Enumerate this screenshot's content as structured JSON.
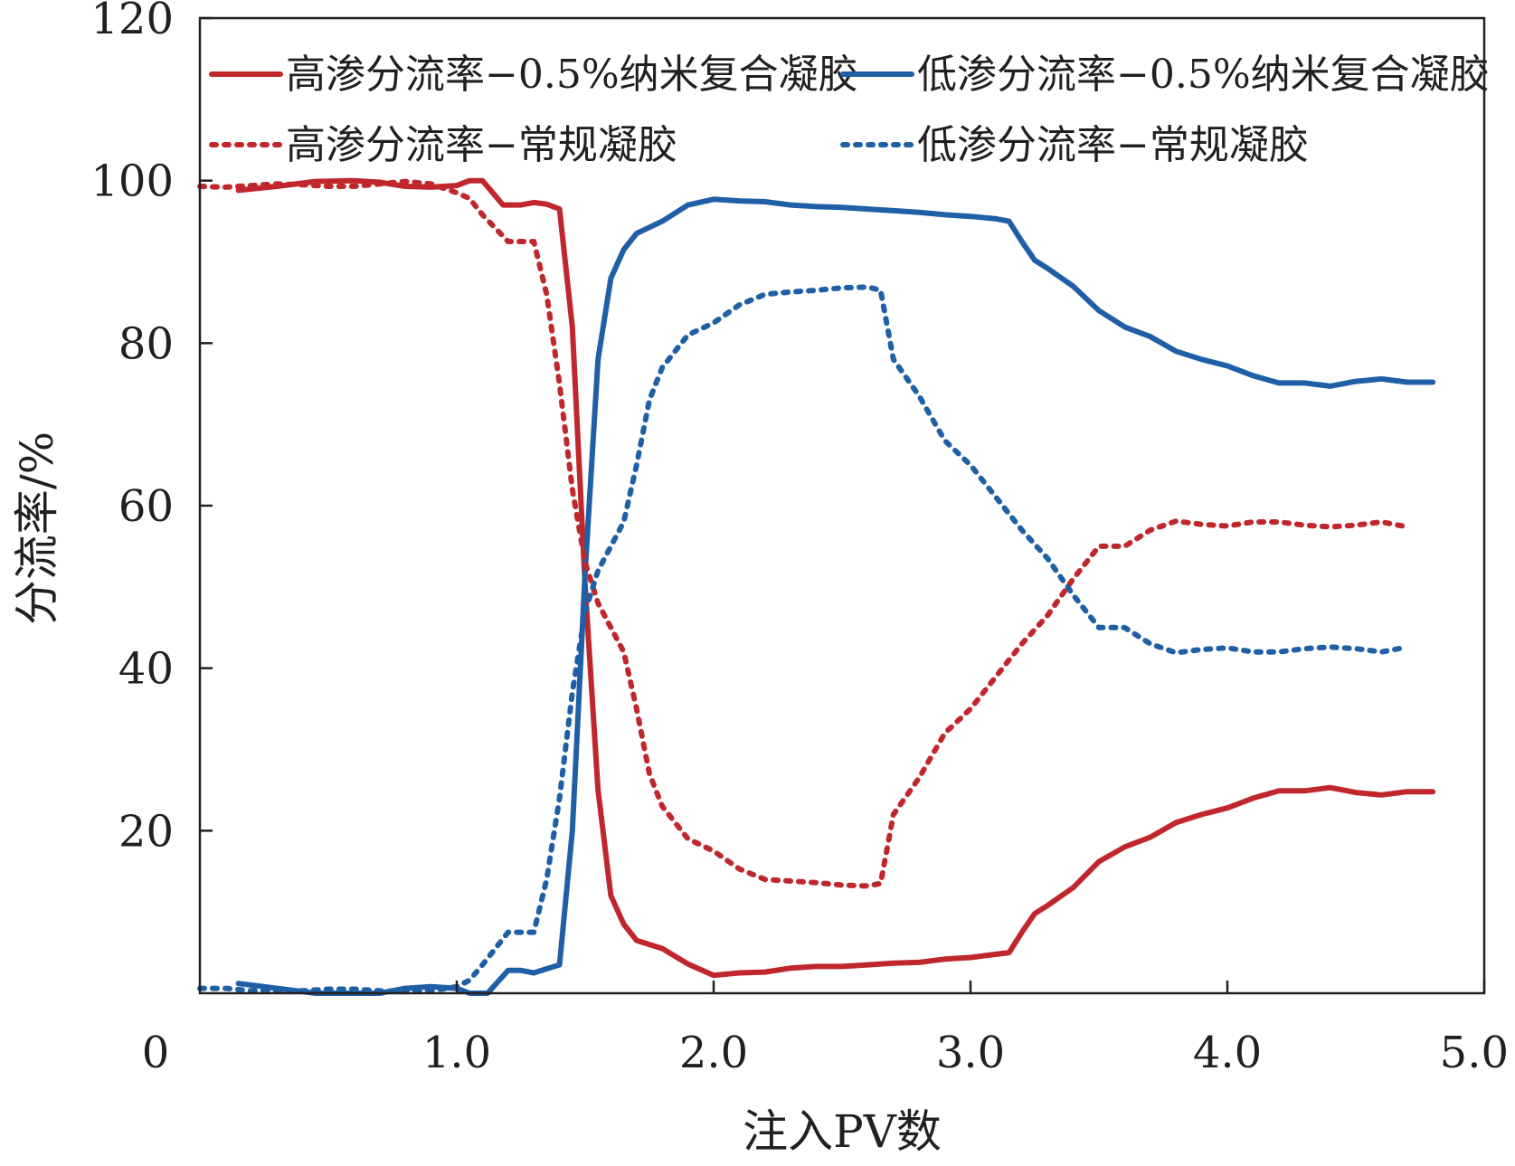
{
  "chart_data": {
    "type": "line",
    "title": "",
    "xlabel": "注入PV数",
    "ylabel": "分流率/%",
    "xlim": [
      0,
      5.0
    ],
    "ylim": [
      0,
      120
    ],
    "x_tick_labels": [
      "0",
      "1.0",
      "2.0",
      "3.0",
      "4.0",
      "5.0"
    ],
    "x_tick_values": [
      0,
      1,
      2,
      3,
      4,
      5
    ],
    "y_tick_labels": [
      "20",
      "40",
      "60",
      "80",
      "100",
      "120"
    ],
    "y_tick_values": [
      20,
      40,
      60,
      80,
      100,
      120
    ],
    "grid": false,
    "legend_position": "top",
    "colors": {
      "red": "#c0272d",
      "blue": "#1f5fa6",
      "axis": "#231f20"
    },
    "series": [
      {
        "name": "高渗分流率−0.5%纳米复合凝胶",
        "color": "#c0272d",
        "style": "solid",
        "points": [
          [
            0.15,
            98.8
          ],
          [
            0.3,
            99.3
          ],
          [
            0.45,
            99.9
          ],
          [
            0.6,
            100
          ],
          [
            0.7,
            99.8
          ],
          [
            0.8,
            99.3
          ],
          [
            0.9,
            99.2
          ],
          [
            1.0,
            99.4
          ],
          [
            1.05,
            100
          ],
          [
            1.1,
            100
          ],
          [
            1.18,
            97
          ],
          [
            1.25,
            97
          ],
          [
            1.3,
            97.3
          ],
          [
            1.35,
            97.1
          ],
          [
            1.4,
            96.5
          ],
          [
            1.45,
            82
          ],
          [
            1.5,
            50
          ],
          [
            1.55,
            25
          ],
          [
            1.6,
            12
          ],
          [
            1.65,
            8.5
          ],
          [
            1.7,
            6.5
          ],
          [
            1.8,
            5.5
          ],
          [
            1.9,
            3.6
          ],
          [
            2.0,
            2.2
          ],
          [
            2.1,
            2.5
          ],
          [
            2.2,
            2.6
          ],
          [
            2.3,
            3.1
          ],
          [
            2.4,
            3.3
          ],
          [
            2.5,
            3.3
          ],
          [
            2.6,
            3.5
          ],
          [
            2.7,
            3.7
          ],
          [
            2.8,
            3.8
          ],
          [
            2.9,
            4.2
          ],
          [
            3.0,
            4.4
          ],
          [
            3.1,
            4.8
          ],
          [
            3.15,
            5.0
          ],
          [
            3.2,
            7.5
          ],
          [
            3.25,
            9.8
          ],
          [
            3.3,
            10.8
          ],
          [
            3.4,
            13
          ],
          [
            3.5,
            16.2
          ],
          [
            3.6,
            18
          ],
          [
            3.7,
            19.2
          ],
          [
            3.8,
            21
          ],
          [
            3.9,
            22
          ],
          [
            4.0,
            22.8
          ],
          [
            4.1,
            24
          ],
          [
            4.2,
            24.9
          ],
          [
            4.3,
            24.9
          ],
          [
            4.4,
            25.3
          ],
          [
            4.5,
            24.7
          ],
          [
            4.6,
            24.4
          ],
          [
            4.7,
            24.8
          ],
          [
            4.8,
            24.8
          ]
        ]
      },
      {
        "name": "低渗分流率−0.5%纳米复合凝胶",
        "color": "#1f5fa6",
        "style": "solid",
        "points": [
          [
            0.15,
            1.2
          ],
          [
            0.3,
            0.6
          ],
          [
            0.45,
            0
          ],
          [
            0.6,
            0
          ],
          [
            0.7,
            0
          ],
          [
            0.8,
            0.6
          ],
          [
            0.9,
            0.8
          ],
          [
            1.0,
            0.6
          ],
          [
            1.05,
            0
          ],
          [
            1.12,
            0
          ],
          [
            1.2,
            2.8
          ],
          [
            1.25,
            2.8
          ],
          [
            1.3,
            2.5
          ],
          [
            1.35,
            3.0
          ],
          [
            1.4,
            3.5
          ],
          [
            1.45,
            20
          ],
          [
            1.5,
            52
          ],
          [
            1.55,
            78
          ],
          [
            1.6,
            88
          ],
          [
            1.65,
            91.5
          ],
          [
            1.7,
            93.5
          ],
          [
            1.8,
            95
          ],
          [
            1.9,
            97
          ],
          [
            2.0,
            97.7
          ],
          [
            2.1,
            97.5
          ],
          [
            2.2,
            97.4
          ],
          [
            2.3,
            97
          ],
          [
            2.4,
            96.8
          ],
          [
            2.5,
            96.7
          ],
          [
            2.6,
            96.5
          ],
          [
            2.7,
            96.3
          ],
          [
            2.8,
            96.1
          ],
          [
            2.9,
            95.8
          ],
          [
            3.0,
            95.6
          ],
          [
            3.1,
            95.3
          ],
          [
            3.15,
            95.0
          ],
          [
            3.2,
            92.5
          ],
          [
            3.25,
            90.2
          ],
          [
            3.3,
            89.2
          ],
          [
            3.4,
            87
          ],
          [
            3.5,
            84
          ],
          [
            3.6,
            82
          ],
          [
            3.7,
            80.8
          ],
          [
            3.8,
            79
          ],
          [
            3.9,
            78
          ],
          [
            4.0,
            77.2
          ],
          [
            4.1,
            76
          ],
          [
            4.2,
            75.1
          ],
          [
            4.3,
            75.1
          ],
          [
            4.4,
            74.7
          ],
          [
            4.5,
            75.3
          ],
          [
            4.6,
            75.6
          ],
          [
            4.7,
            75.2
          ],
          [
            4.8,
            75.2
          ]
        ]
      },
      {
        "name": "高渗分流率−常规凝胶",
        "color": "#c0272d",
        "style": "dotted",
        "points": [
          [
            0.0,
            99.3
          ],
          [
            0.1,
            99.2
          ],
          [
            0.2,
            99.4
          ],
          [
            0.3,
            99.6
          ],
          [
            0.4,
            99.5
          ],
          [
            0.5,
            99.3
          ],
          [
            0.6,
            99.3
          ],
          [
            0.7,
            99.6
          ],
          [
            0.8,
            99.9
          ],
          [
            0.9,
            99.6
          ],
          [
            1.0,
            98.5
          ],
          [
            1.05,
            97.8
          ],
          [
            1.1,
            95.8
          ],
          [
            1.2,
            92.5
          ],
          [
            1.3,
            92.5
          ],
          [
            1.35,
            86
          ],
          [
            1.4,
            75
          ],
          [
            1.45,
            62
          ],
          [
            1.5,
            53
          ],
          [
            1.55,
            48
          ],
          [
            1.6,
            45
          ],
          [
            1.65,
            42
          ],
          [
            1.7,
            35
          ],
          [
            1.75,
            27
          ],
          [
            1.8,
            23
          ],
          [
            1.9,
            19
          ],
          [
            2.0,
            17.5
          ],
          [
            2.1,
            15.3
          ],
          [
            2.2,
            14
          ],
          [
            2.3,
            13.8
          ],
          [
            2.4,
            13.6
          ],
          [
            2.5,
            13.3
          ],
          [
            2.6,
            13.2
          ],
          [
            2.65,
            13.5
          ],
          [
            2.7,
            22
          ],
          [
            2.8,
            26.5
          ],
          [
            2.9,
            32
          ],
          [
            3.0,
            35
          ],
          [
            3.1,
            39
          ],
          [
            3.2,
            43
          ],
          [
            3.3,
            46.5
          ],
          [
            3.4,
            51
          ],
          [
            3.5,
            55
          ],
          [
            3.6,
            55
          ],
          [
            3.7,
            57
          ],
          [
            3.8,
            58.1
          ],
          [
            3.9,
            57.7
          ],
          [
            4.0,
            57.5
          ],
          [
            4.1,
            58
          ],
          [
            4.2,
            58
          ],
          [
            4.3,
            57.6
          ],
          [
            4.4,
            57.4
          ],
          [
            4.5,
            57.6
          ],
          [
            4.6,
            58
          ],
          [
            4.7,
            57.4
          ]
        ]
      },
      {
        "name": "低渗分流率−常规凝胶",
        "color": "#1f5fa6",
        "style": "dotted",
        "points": [
          [
            0.0,
            0.6
          ],
          [
            0.1,
            0.6
          ],
          [
            0.2,
            0.3
          ],
          [
            0.3,
            0.3
          ],
          [
            0.4,
            0.3
          ],
          [
            0.5,
            0.5
          ],
          [
            0.6,
            0.5
          ],
          [
            0.7,
            0.3
          ],
          [
            0.8,
            0.2
          ],
          [
            0.9,
            0.3
          ],
          [
            1.0,
            0.8
          ],
          [
            1.05,
            1.6
          ],
          [
            1.1,
            3.5
          ],
          [
            1.2,
            7.5
          ],
          [
            1.3,
            7.5
          ],
          [
            1.35,
            14
          ],
          [
            1.4,
            24
          ],
          [
            1.45,
            37
          ],
          [
            1.5,
            47
          ],
          [
            1.55,
            52
          ],
          [
            1.6,
            55
          ],
          [
            1.65,
            58
          ],
          [
            1.7,
            65
          ],
          [
            1.75,
            73
          ],
          [
            1.8,
            77
          ],
          [
            1.9,
            81
          ],
          [
            2.0,
            82.5
          ],
          [
            2.1,
            84.7
          ],
          [
            2.2,
            86
          ],
          [
            2.3,
            86.3
          ],
          [
            2.4,
            86.5
          ],
          [
            2.5,
            86.8
          ],
          [
            2.6,
            86.9
          ],
          [
            2.65,
            86.5
          ],
          [
            2.7,
            78
          ],
          [
            2.8,
            73.5
          ],
          [
            2.9,
            68
          ],
          [
            3.0,
            65
          ],
          [
            3.1,
            61
          ],
          [
            3.2,
            57
          ],
          [
            3.3,
            53.5
          ],
          [
            3.4,
            49
          ],
          [
            3.5,
            45
          ],
          [
            3.6,
            45
          ],
          [
            3.7,
            43
          ],
          [
            3.8,
            41.9
          ],
          [
            3.9,
            42.3
          ],
          [
            4.0,
            42.5
          ],
          [
            4.1,
            42
          ],
          [
            4.2,
            42
          ],
          [
            4.3,
            42.4
          ],
          [
            4.4,
            42.6
          ],
          [
            4.5,
            42.4
          ],
          [
            4.6,
            42
          ],
          [
            4.7,
            42.6
          ]
        ]
      }
    ]
  }
}
